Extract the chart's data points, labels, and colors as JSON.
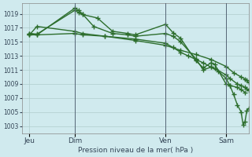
{
  "background_color": "#d0eaee",
  "grid_color": "#b0cccc",
  "line_color": "#2d6e2d",
  "marker": "+",
  "markersize": 4,
  "linewidth": 1.0,
  "x_tick_labels": [
    "Jeu",
    "Dim",
    "Ven",
    "Sam"
  ],
  "x_tick_positions": [
    0,
    24,
    72,
    104
  ],
  "ylabel_text": "Pression niveau de la mer( hPa )",
  "ylim": [
    1002.0,
    1020.5
  ],
  "yticks": [
    1003,
    1005,
    1007,
    1009,
    1011,
    1013,
    1015,
    1017,
    1019
  ],
  "xlim": [
    -4,
    116
  ],
  "vlines": [
    24,
    72,
    104
  ],
  "line1_x": [
    0,
    4,
    24,
    26,
    28,
    36,
    44,
    52,
    56,
    72,
    76,
    80,
    88,
    92,
    96,
    98,
    104,
    106,
    110,
    112,
    114
  ],
  "line1_y": [
    1016.2,
    1016.1,
    1019.5,
    1019.2,
    1018.9,
    1018.4,
    1016.5,
    1016.2,
    1016.0,
    1017.5,
    1016.3,
    1015.5,
    1012.3,
    1011.3,
    1012.0,
    1011.8,
    1009.0,
    1008.8,
    1008.5,
    1008.2,
    1007.8
  ],
  "line2_x": [
    0,
    4,
    24,
    26,
    28,
    34,
    44,
    52,
    56,
    72,
    76,
    80,
    88,
    92,
    96,
    98,
    104,
    106,
    110,
    112,
    114,
    115,
    116
  ],
  "line2_y": [
    1016.2,
    1016.0,
    1019.8,
    1019.5,
    1019.0,
    1017.2,
    1016.2,
    1016.0,
    1015.8,
    1016.2,
    1015.8,
    1015.0,
    1012.6,
    1011.0,
    1011.4,
    1011.2,
    1010.3,
    1009.8,
    1009.0,
    1008.8,
    1008.5,
    1008.3,
    1008.1
  ],
  "line3_x": [
    0,
    4,
    24,
    28,
    40,
    56,
    72,
    80,
    88,
    96,
    104,
    108,
    112,
    114,
    115,
    116
  ],
  "line3_y": [
    1016.0,
    1017.2,
    1016.5,
    1016.2,
    1015.8,
    1015.2,
    1014.5,
    1013.8,
    1013.2,
    1012.5,
    1011.5,
    1010.6,
    1010.0,
    1009.7,
    1009.5,
    1009.2
  ],
  "line4_x": [
    0,
    4,
    24,
    28,
    40,
    56,
    72,
    76,
    80,
    84,
    88,
    92,
    96,
    100,
    104,
    106,
    108,
    110,
    112,
    113,
    114,
    115,
    116
  ],
  "line4_y": [
    1016.0,
    1016.0,
    1016.2,
    1016.0,
    1015.8,
    1015.4,
    1014.8,
    1014.2,
    1013.5,
    1013.0,
    1012.5,
    1012.0,
    1011.4,
    1010.8,
    1009.8,
    1008.8,
    1007.5,
    1006.0,
    1005.0,
    1003.2,
    1003.6,
    1005.2,
    1005.5
  ]
}
